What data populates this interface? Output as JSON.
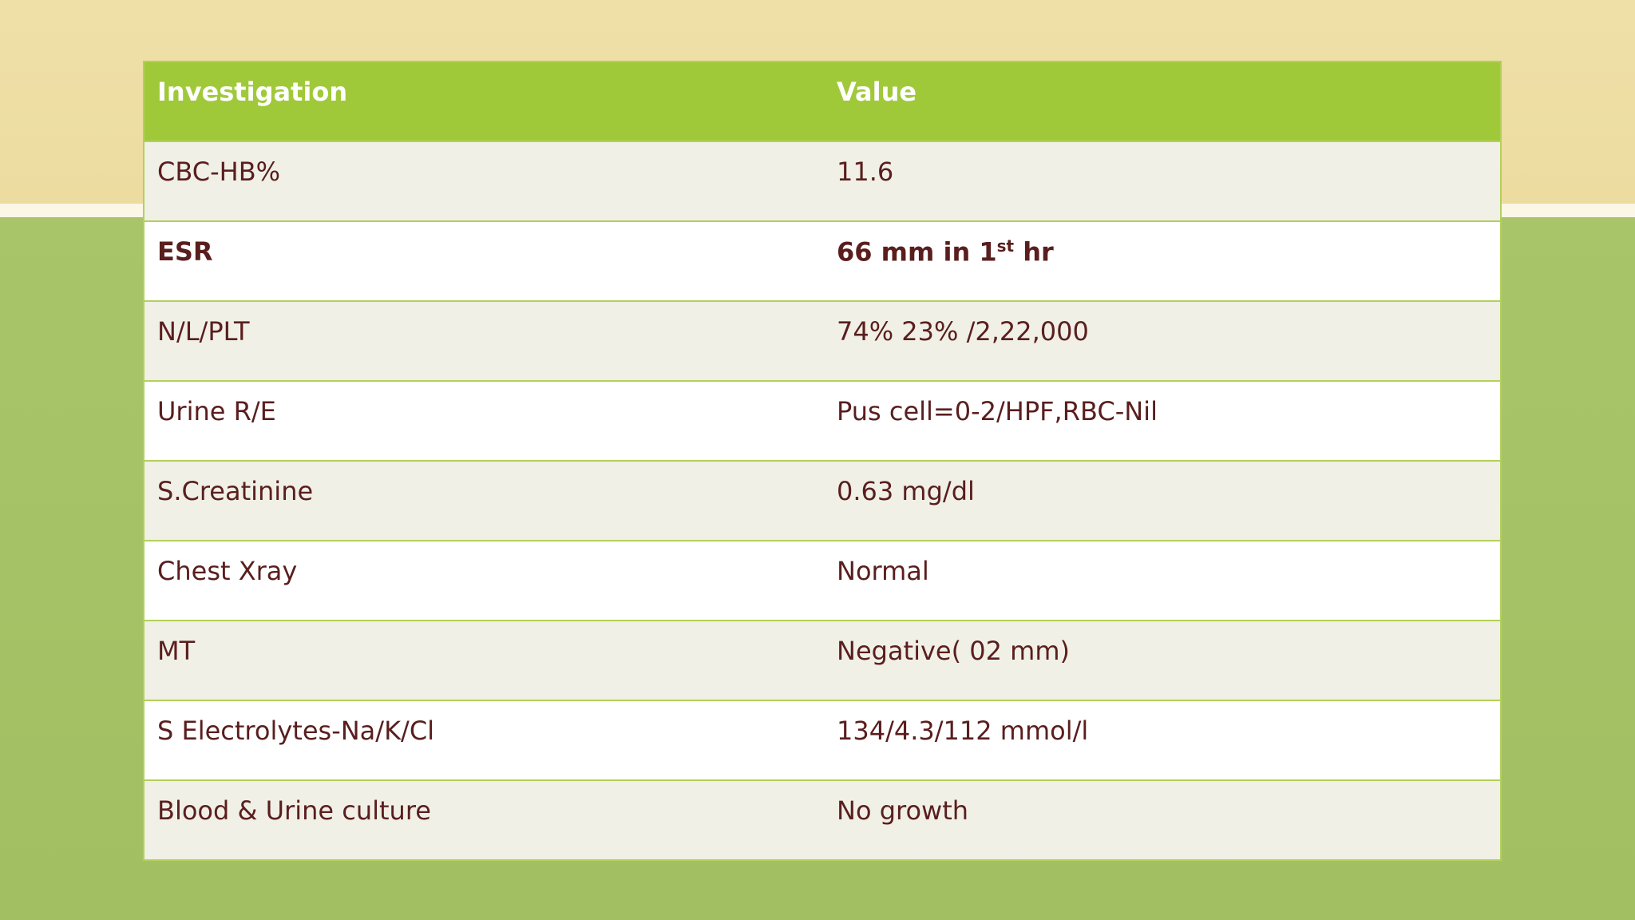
{
  "table": {
    "header": [
      "Investigation",
      "Value"
    ],
    "rows": [
      {
        "investigation": "CBC-HB%",
        "value": "11.6"
      },
      {
        "investigation": "ESR",
        "value": "66 mm in 1",
        "value_sup": "st",
        "value_after": " hr",
        "bold": true
      },
      {
        "investigation": "N/L/PLT",
        "value": "74% 23% /2,22,000"
      },
      {
        "investigation": "Urine R/E",
        "value": "Pus cell=0-2/HPF,RBC-Nil"
      },
      {
        "investigation": "S.Creatinine",
        "value": "0.63 mg/dl"
      },
      {
        "investigation": "Chest Xray",
        "value": "Normal"
      },
      {
        "investigation": "MT",
        "value": "Negative( 02 mm)"
      },
      {
        "investigation": "S Electrolytes-Na/K/Cl",
        "value": "134/4.3/112 mmol/l"
      },
      {
        "investigation": "Blood & Urine culture",
        "value": "No growth"
      }
    ]
  }
}
